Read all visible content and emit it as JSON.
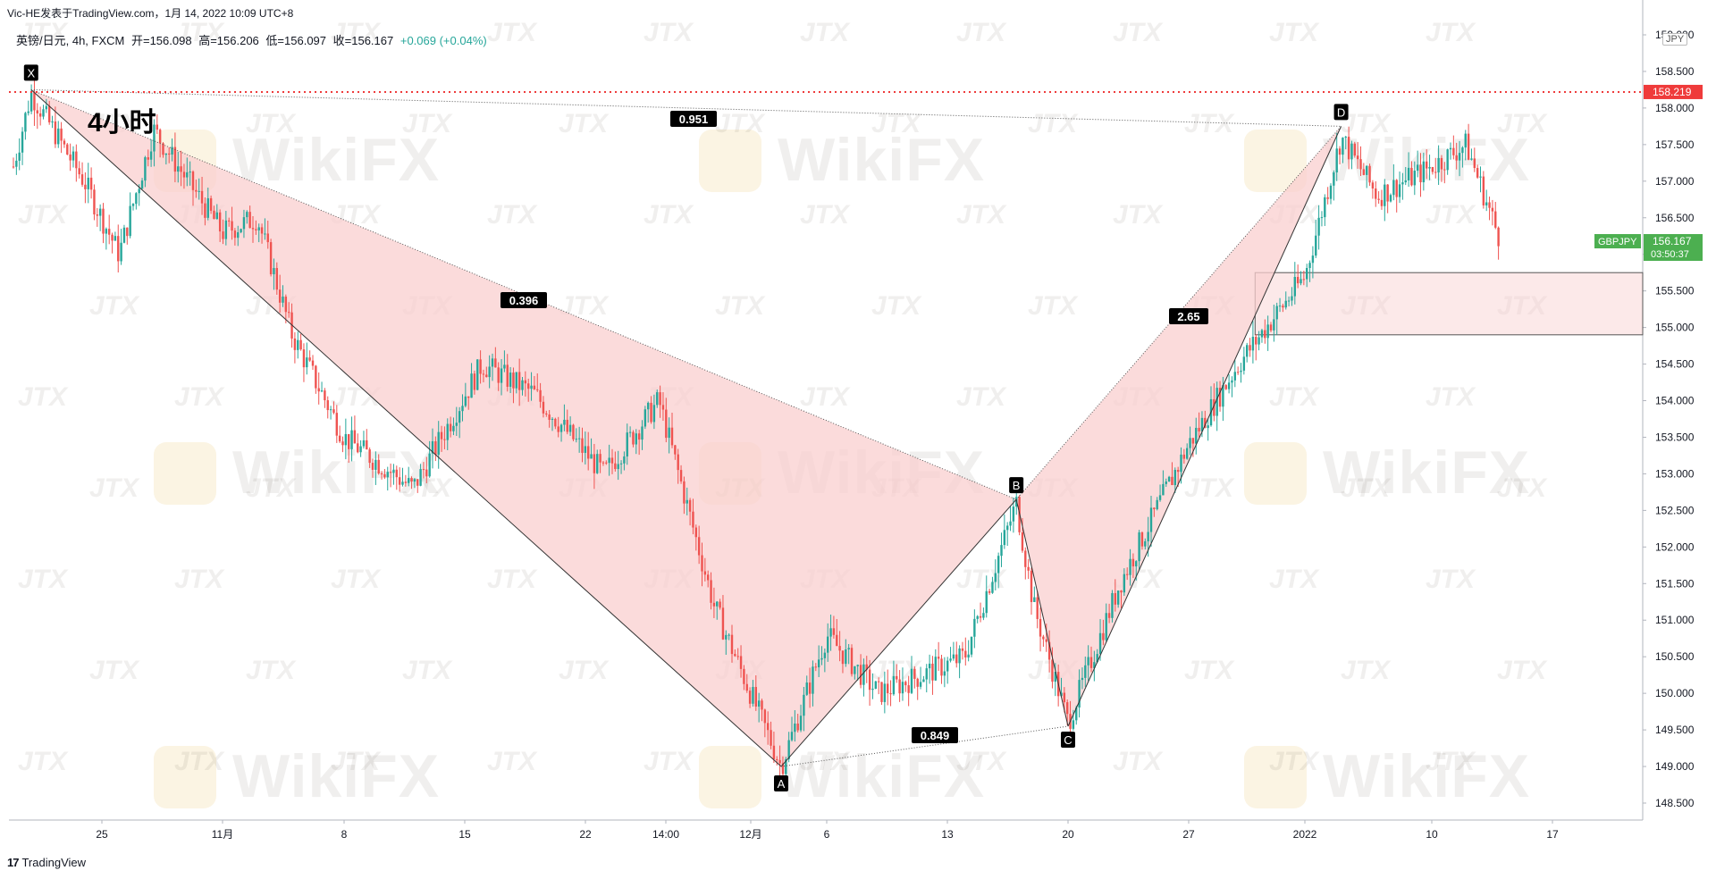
{
  "header": {
    "author_line": "Vic-HE发表于TradingView.com，1月 14, 2022 10:09 UTC+8",
    "symbol_name": "英镑/日元, 4h, FXCM",
    "open": "开=156.098",
    "high": "高=156.206",
    "low": "低=156.097",
    "close": "收=156.167",
    "change": "+0.069 (+0.04%)",
    "timeframe_label": "4小时",
    "currency_badge": "JPY"
  },
  "footer": {
    "brand": "TradingView",
    "brand_logo": "17"
  },
  "watermarks": {
    "big": "WikiFX",
    "small": "JTX"
  },
  "price_tags": {
    "alert_level": "158.219",
    "symbol": "GBPJPY",
    "last_price": "156.167",
    "countdown": "03:50:37"
  },
  "colors": {
    "up_candle": "#26a69a",
    "down_candle": "#ef5350",
    "pattern_fill": "#f9cfcf",
    "alert_line": "#ef3b3b",
    "price_tag": "#4caf50",
    "label_bg": "#000000"
  },
  "chart_data": {
    "type": "candlestick",
    "symbol": "GBPJPY",
    "timeframe": "4h",
    "y_axis": {
      "min": 148.0,
      "max": 159.2,
      "ticks": [
        "148.500",
        "149.000",
        "149.500",
        "150.000",
        "150.500",
        "151.000",
        "151.500",
        "152.000",
        "152.500",
        "153.000",
        "153.500",
        "154.000",
        "154.500",
        "155.000",
        "155.500",
        "156.000",
        "156.500",
        "157.000",
        "157.500",
        "158.000",
        "158.500",
        "159.000"
      ]
    },
    "x_axis": {
      "labels": [
        "25",
        "11月",
        "8",
        "15",
        "22",
        "14:00",
        "12月",
        "6",
        "13",
        "20",
        "27",
        "2022",
        "10",
        "17"
      ]
    },
    "price_path": [
      {
        "x": "10-20",
        "price": 157.2
      },
      {
        "x": "10-21",
        "price": 158.2
      },
      {
        "x": "10-24",
        "price": 157.0
      },
      {
        "x": "10-26",
        "price": 156.0
      },
      {
        "x": "10-28",
        "price": 157.7
      },
      {
        "x": "11-01",
        "price": 156.3
      },
      {
        "x": "11-03",
        "price": 156.5
      },
      {
        "x": "11-05",
        "price": 154.9
      },
      {
        "x": "11-08",
        "price": 153.5
      },
      {
        "x": "11-12",
        "price": 152.8
      },
      {
        "x": "11-16",
        "price": 154.5
      },
      {
        "x": "11-19",
        "price": 154.1
      },
      {
        "x": "11-23",
        "price": 153.0
      },
      {
        "x": "11-26",
        "price": 154.0
      },
      {
        "x": "11-29",
        "price": 151.2
      },
      {
        "x": "12-02",
        "price": 149.5
      },
      {
        "x": "12-03",
        "price": 149.0
      },
      {
        "x": "12-06",
        "price": 150.8
      },
      {
        "x": "12-09",
        "price": 150.0
      },
      {
        "x": "12-14",
        "price": 150.5
      },
      {
        "x": "12-17",
        "price": 152.6
      },
      {
        "x": "12-18",
        "price": 151.2
      },
      {
        "x": "12-20",
        "price": 149.6
      },
      {
        "x": "12-23",
        "price": 151.5
      },
      {
        "x": "12-27",
        "price": 153.4
      },
      {
        "x": "12-30",
        "price": 154.5
      },
      {
        "x": "01-03",
        "price": 155.7
      },
      {
        "x": "01-05",
        "price": 157.6
      },
      {
        "x": "01-07",
        "price": 156.8
      },
      {
        "x": "01-10",
        "price": 157.2
      },
      {
        "x": "01-12",
        "price": 157.5
      },
      {
        "x": "01-14",
        "price": 156.167
      }
    ],
    "harmonic_pattern": {
      "points": [
        {
          "label": "X",
          "x": "10-21",
          "price": 158.25
        },
        {
          "label": "A",
          "x": "12-03",
          "price": 149.0
        },
        {
          "label": "B",
          "x": "12-17",
          "price": 152.65
        },
        {
          "label": "C",
          "x": "12-20",
          "price": 149.55
        },
        {
          "label": "D",
          "x": "01-05",
          "price": 157.75
        }
      ],
      "ratios": [
        {
          "label": "0.396",
          "between": "X-B"
        },
        {
          "label": "0.849",
          "between": "A-C"
        },
        {
          "label": "2.65",
          "between": "B-D"
        },
        {
          "label": "0.951",
          "between": "X-D"
        }
      ]
    },
    "zone": {
      "from_x": "12-31",
      "to_x": "right-edge",
      "low": 154.9,
      "high": 155.75
    },
    "alert_line": 158.219,
    "last_price": 156.167
  }
}
